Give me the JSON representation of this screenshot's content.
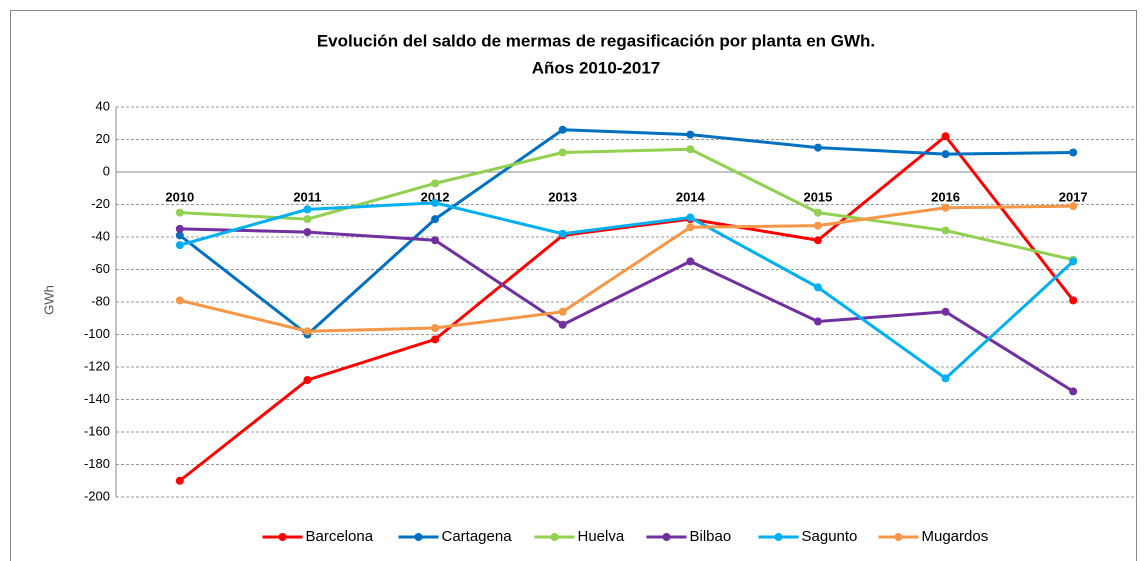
{
  "chart_data": {
    "type": "line",
    "title": [
      "Evolución del saldo de mermas de regasificación por planta en GWh.",
      "Años 2010-2017"
    ],
    "y_label": "GWh",
    "categories": [
      "2010",
      "2011",
      "2012",
      "2013",
      "2014",
      "2015",
      "2016",
      "2017"
    ],
    "series": [
      {
        "name": "Barcelona",
        "color": "#ff0000",
        "values": [
          -190,
          -128,
          -103,
          -39,
          -29,
          -42,
          22,
          -79
        ]
      },
      {
        "name": "Cartagena",
        "color": "#0070c0",
        "values": [
          -39,
          -100,
          -29,
          26,
          23,
          15,
          11,
          12
        ]
      },
      {
        "name": "Huelva",
        "color": "#92d050",
        "values": [
          -25,
          -29,
          -7,
          12,
          14,
          -25,
          -36,
          -54
        ]
      },
      {
        "name": "Bilbao",
        "color": "#7030a0",
        "values": [
          -35,
          -37,
          -42,
          -94,
          -55,
          -92,
          -86,
          -135
        ]
      },
      {
        "name": "Sagunto",
        "color": "#00b0f0",
        "values": [
          -45,
          -23,
          -19,
          -38,
          -28,
          -71,
          -127,
          -55
        ]
      },
      {
        "name": "Mugardos",
        "color": "#f79646",
        "values": [
          -79,
          -98,
          -96,
          -86,
          -34,
          -33,
          -22,
          -21
        ]
      }
    ],
    "ylim": [
      -200,
      40
    ],
    "yticks": [
      -200,
      -180,
      -160,
      -140,
      -120,
      -100,
      -80,
      -60,
      -40,
      -20,
      0,
      20,
      40
    ],
    "grid": true,
    "legend": "bottom"
  }
}
